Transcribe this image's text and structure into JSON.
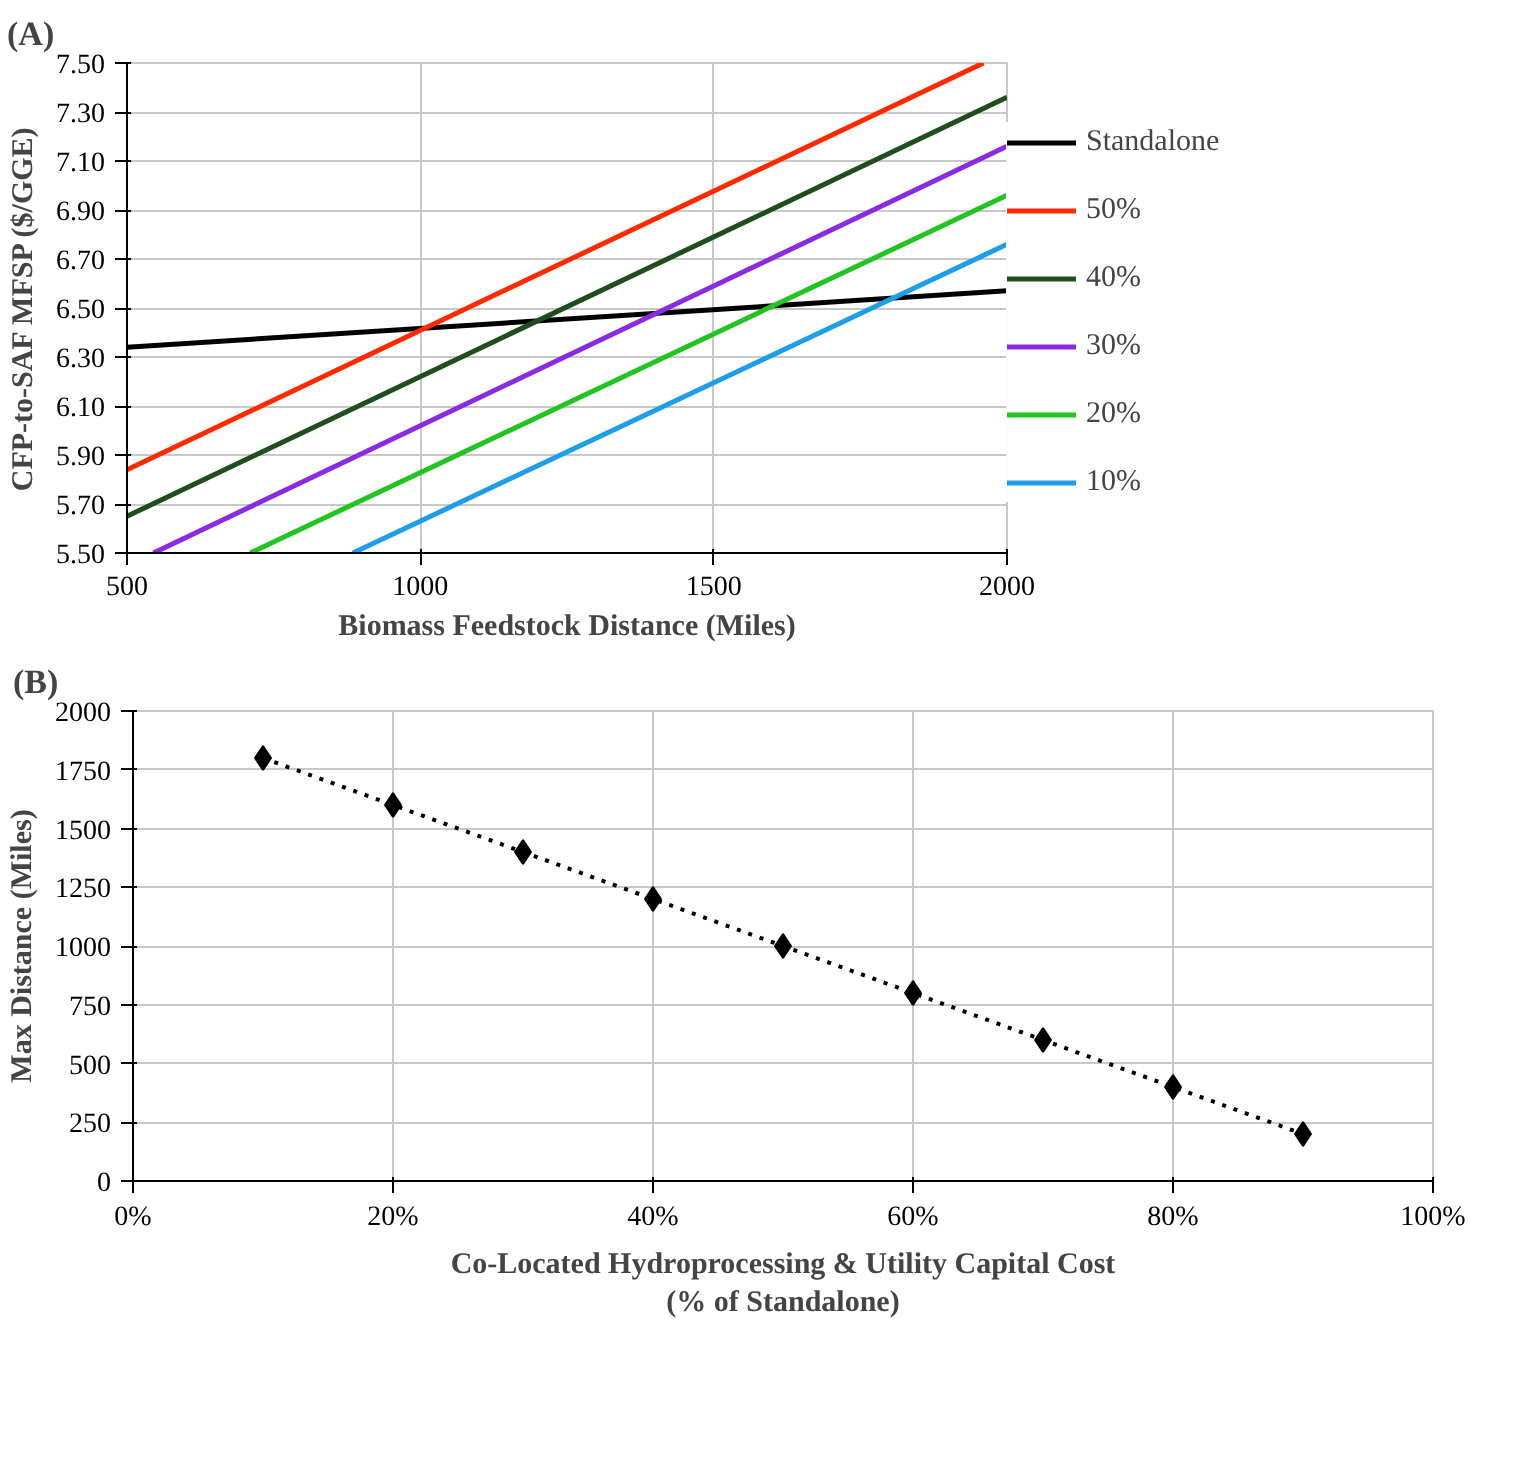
{
  "chart_data": [
    {
      "type": "line",
      "title": "(A)",
      "xlabel": "Biomass Feedstock Distance (Miles)",
      "ylabel": "CFP-to-SAF MFSP ($/GGE)",
      "xlim": [
        500,
        2000
      ],
      "ylim": [
        5.5,
        7.5
      ],
      "xticks": [
        500,
        1000,
        1500,
        2000
      ],
      "yticks": [
        {
          "value": 5.5,
          "label": "5.50"
        },
        {
          "value": 5.7,
          "label": "5.70"
        },
        {
          "value": 5.9,
          "label": "5.90"
        },
        {
          "value": 6.1,
          "label": "6.10"
        },
        {
          "value": 6.3,
          "label": "6.30"
        },
        {
          "value": 6.5,
          "label": "6.50"
        },
        {
          "value": 6.7,
          "label": "6.70"
        },
        {
          "value": 6.9,
          "label": "6.90"
        },
        {
          "value": 7.1,
          "label": "7.10"
        },
        {
          "value": 7.3,
          "label": "7.30"
        },
        {
          "value": 7.5,
          "label": "7.50"
        }
      ],
      "grid": true,
      "legend": "right",
      "marker": "none",
      "line_style": "solid",
      "series": [
        {
          "name": "Standalone",
          "color": "#000000",
          "x": [
            500,
            2000
          ],
          "values": [
            6.34,
            6.57
          ]
        },
        {
          "name": "50%",
          "color": "#ff2a00",
          "x": [
            500,
            1960
          ],
          "values": [
            5.84,
            7.5
          ]
        },
        {
          "name": "40%",
          "color": "#1e4d1e",
          "x": [
            500,
            2000
          ],
          "values": [
            5.65,
            7.36
          ]
        },
        {
          "name": "30%",
          "color": "#8a2be2",
          "x": [
            545,
            2000
          ],
          "values": [
            5.5,
            7.16
          ]
        },
        {
          "name": "20%",
          "color": "#22c422",
          "x": [
            710,
            2000
          ],
          "values": [
            5.5,
            6.96
          ]
        },
        {
          "name": "10%",
          "color": "#1e9ee8",
          "x": [
            885,
            2000
          ],
          "values": [
            5.5,
            6.76
          ]
        }
      ]
    },
    {
      "type": "line",
      "title": "(B)",
      "xlabel": "Co-Located Hydroprocessing & Utility Capital Cost\n(% of Standalone)",
      "ylabel": "Max Distance (Miles)",
      "xlim": [
        0,
        100
      ],
      "ylim": [
        0,
        2000
      ],
      "xticks": [
        {
          "value": 0,
          "label": "0%"
        },
        {
          "value": 20,
          "label": "20%"
        },
        {
          "value": 40,
          "label": "40%"
        },
        {
          "value": 60,
          "label": "60%"
        },
        {
          "value": 80,
          "label": "80%"
        },
        {
          "value": 100,
          "label": "100%"
        }
      ],
      "yticks": [
        0,
        250,
        500,
        750,
        1000,
        1250,
        1500,
        1750,
        2000
      ],
      "grid": true,
      "marker": "diamond",
      "line_style": "dotted",
      "series": [
        {
          "color": "#000000",
          "x": [
            10,
            20,
            30,
            40,
            50,
            60,
            70,
            80,
            90
          ],
          "values": [
            1800,
            1600,
            1400,
            1200,
            1000,
            800,
            600,
            400,
            200
          ]
        }
      ]
    }
  ]
}
